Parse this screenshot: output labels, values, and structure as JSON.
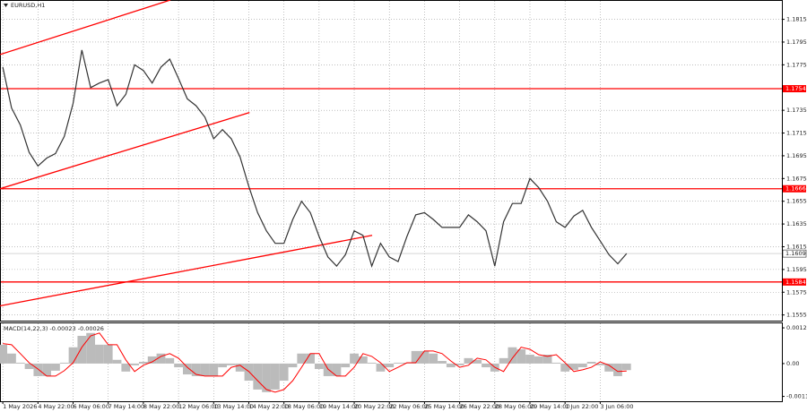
{
  "chart_data": [
    {
      "type": "line",
      "title": "EURUSD,H1",
      "color": "#333333",
      "grid": true,
      "x": [
        0,
        0.25,
        0.5,
        0.75,
        1,
        1.25,
        1.5,
        1.75,
        2,
        2.25,
        2.5,
        2.75,
        3,
        3.25,
        3.5,
        3.75,
        4,
        4.25,
        4.5,
        4.75,
        5,
        5.25,
        5.5,
        5.75,
        6,
        6.25,
        6.5,
        6.75,
        7,
        7.25,
        7.5,
        7.75,
        8,
        8.25,
        8.5,
        8.75,
        9,
        9.25,
        9.5,
        9.75,
        10,
        10.25,
        10.5,
        10.75,
        11,
        11.25,
        11.5,
        11.75,
        12,
        12.25,
        12.5,
        12.75,
        13,
        13.25,
        13.5,
        13.75,
        14,
        14.25,
        14.5,
        14.75,
        15,
        15.25,
        15.5,
        15.75,
        16,
        16.25,
        16.5,
        16.75,
        17,
        17.25,
        17.5,
        17.75
      ],
      "values": [
        1.1773,
        1.1737,
        1.1722,
        1.1698,
        1.1686,
        1.1693,
        1.1697,
        1.1712,
        1.1741,
        1.1788,
        1.1755,
        1.1759,
        1.1762,
        1.1739,
        1.1749,
        1.1775,
        1.177,
        1.1759,
        1.1773,
        1.178,
        1.1763,
        1.1745,
        1.1739,
        1.1729,
        1.171,
        1.1718,
        1.171,
        1.1694,
        1.1668,
        1.1645,
        1.1629,
        1.1618,
        1.1618,
        1.1639,
        1.1655,
        1.1645,
        1.1624,
        1.1606,
        1.1598,
        1.1608,
        1.1629,
        1.1625,
        1.1598,
        1.1618,
        1.1606,
        1.1602,
        1.1624,
        1.1643,
        1.1645,
        1.1639,
        1.1632,
        1.1632,
        1.1632,
        1.1643,
        1.1637,
        1.1629,
        1.1598,
        1.1637,
        1.1653,
        1.1653,
        1.1675,
        1.1667,
        1.1655,
        1.1637,
        1.1632,
        1.1642,
        1.1647,
        1.1632,
        1.162,
        1.1608,
        1.16,
        1.1609
      ],
      "xlim": [
        -0.08,
        22.17
      ],
      "ylim": [
        1.155,
        1.1832
      ],
      "yticks": [
        1.1815,
        1.1795,
        1.1775,
        1.1735,
        1.1715,
        1.1695,
        1.1675,
        1.1655,
        1.1635,
        1.1615,
        1.1595,
        1.1575,
        1.1555
      ],
      "xticks": [
        {
          "value": 0,
          "label": "1 May 2026"
        },
        {
          "value": 1,
          "label": "4 May 22:00"
        },
        {
          "value": 2,
          "label": "6 May 06:00"
        },
        {
          "value": 3,
          "label": "7 May 14:00"
        },
        {
          "value": 4,
          "label": "8 May 22:00"
        },
        {
          "value": 5,
          "label": "12 May 06:00"
        },
        {
          "value": 6,
          "label": "13 May 14:00"
        },
        {
          "value": 7,
          "label": "14 May 22:00"
        },
        {
          "value": 8,
          "label": "18 May 06:00"
        },
        {
          "value": 9,
          "label": "19 May 14:00"
        },
        {
          "value": 10,
          "label": "20 May 22:00"
        },
        {
          "value": 11,
          "label": "22 May 06:00"
        },
        {
          "value": 12,
          "label": "25 May 14:00"
        },
        {
          "value": 13,
          "label": "26 May 22:00"
        },
        {
          "value": 14,
          "label": "28 May 06:00"
        },
        {
          "value": 15,
          "label": "29 May 14:00"
        },
        {
          "value": 16,
          "label": "1 Jun 22:00"
        },
        {
          "value": 17,
          "label": "3 Jun 06:00"
        }
      ],
      "levels": [
        1.1754,
        1.1666,
        1.1584
      ],
      "level_color": "#ff0000",
      "last_price": 1.1609,
      "trendlines": [
        {
          "x": [
            -0.08,
            4.77
          ],
          "y": [
            1.1784,
            1.1832
          ]
        },
        {
          "x": [
            -0.08,
            7.02
          ],
          "y": [
            1.1666,
            1.1733
          ]
        },
        {
          "x": [
            -0.08,
            10.51
          ],
          "y": [
            1.1563,
            1.1625
          ]
        }
      ]
    },
    {
      "type": "bar",
      "title": "MACD(14,22,3) -0.00023 -0.00026",
      "color": "#bbbbbb",
      "signal_color": "#ff0000",
      "x": [
        0,
        0.25,
        0.5,
        0.75,
        1,
        1.25,
        1.5,
        1.75,
        2,
        2.25,
        2.5,
        2.75,
        3,
        3.25,
        3.5,
        3.75,
        4,
        4.25,
        4.5,
        4.75,
        5,
        5.25,
        5.5,
        5.75,
        6,
        6.25,
        6.5,
        6.75,
        7,
        7.25,
        7.5,
        7.75,
        8,
        8.25,
        8.5,
        8.75,
        9,
        9.25,
        9.5,
        9.75,
        10,
        10.25,
        10.5,
        10.75,
        11,
        11.25,
        11.5,
        11.75,
        12,
        12.25,
        12.5,
        12.75,
        13,
        13.25,
        13.5,
        13.75,
        14,
        14.25,
        14.5,
        14.75,
        15,
        15.25,
        15.5,
        15.75,
        16,
        16.25,
        16.5,
        16.75,
        17,
        17.25,
        17.5,
        17.75
      ],
      "values": [
        0.00066,
        0.00035,
        3e-05,
        -0.00019,
        -0.00044,
        -0.00044,
        -0.00025,
        3e-05,
        0.00057,
        0.00097,
        0.00107,
        0.00066,
        0.00066,
        0.00013,
        -0.00028,
        -6e-05,
        6e-05,
        0.00025,
        0.00035,
        0.00019,
        -0.00013,
        -0.00038,
        -0.00044,
        -0.00044,
        -0.00044,
        -0.00013,
        -6e-05,
        -0.00028,
        -0.0006,
        -0.00091,
        -0.001,
        -0.00091,
        -0.0006,
        -0.00013,
        0.00035,
        0.00035,
        -0.00019,
        -0.00044,
        -0.00044,
        -0.00013,
        0.00035,
        0.00025,
        3e-05,
        -0.00028,
        -0.00013,
        3e-05,
        3e-05,
        0.00044,
        0.00044,
        0.00035,
        9e-05,
        -0.00013,
        -6e-05,
        0.00019,
        0.00013,
        -0.00013,
        -0.00028,
        0.00019,
        0.00057,
        0.0005,
        0.00031,
        0.00025,
        0.00031,
        3e-05,
        -0.00028,
        -0.00022,
        -0.00013,
        6e-05,
        -6e-05,
        -0.00028,
        -0.00044,
        -0.00023
      ],
      "signal": [
        0.0007,
        0.00066,
        0.00035,
        3e-05,
        -0.00019,
        -0.00044,
        -0.00044,
        -0.00025,
        3e-05,
        0.00057,
        0.00097,
        0.00107,
        0.00066,
        0.00066,
        0.00013,
        -0.00028,
        -6e-05,
        6e-05,
        0.00025,
        0.00035,
        0.00019,
        -0.00013,
        -0.00038,
        -0.00044,
        -0.00044,
        -0.00044,
        -0.00013,
        -6e-05,
        -0.00028,
        -0.0006,
        -0.00091,
        -0.001,
        -0.00091,
        -0.0006,
        -0.00013,
        0.00035,
        0.00035,
        -0.00019,
        -0.00044,
        -0.00044,
        -0.00013,
        0.00035,
        0.00025,
        3e-05,
        -0.00028,
        -0.00013,
        3e-05,
        3e-05,
        0.00044,
        0.00044,
        0.00035,
        9e-05,
        -0.00013,
        -6e-05,
        0.00019,
        0.00013,
        -0.00013,
        -0.00028,
        0.00019,
        0.00057,
        0.0005,
        0.00031,
        0.00025,
        0.00031,
        3e-05,
        -0.00028,
        -0.00022,
        -0.00013,
        6e-05,
        -6e-05,
        -0.00028,
        -0.00026
      ],
      "ylim": [
        -0.00132,
        0.00144
      ],
      "yticks": [
        0.00125,
        {
          "value": 0,
          "label": "0.00"
        },
        -0.00115
      ]
    }
  ]
}
